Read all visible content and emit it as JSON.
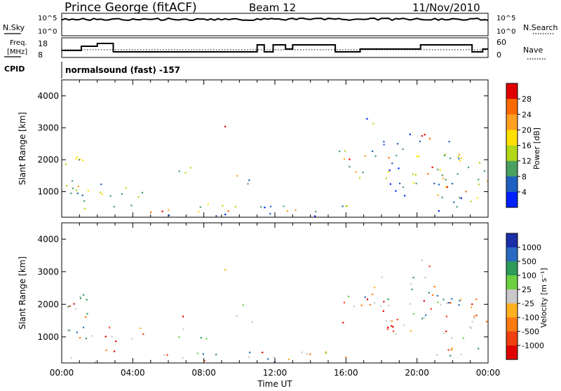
{
  "header": {
    "title": "Prince George (fitACF)",
    "beam": "Beam 12",
    "date": "11/Nov/2010"
  },
  "aux": {
    "nsky_label": "N.Sky",
    "nsky_ticks": [
      "10^5",
      "10^0"
    ],
    "nsearch_label": "N.Search",
    "nsearch_ticks": [
      "10^5",
      "10^0"
    ],
    "freq_label_1": "Freq.",
    "freq_label_2": "[MHz]",
    "freq_ticks": [
      "18",
      "8"
    ],
    "nave_label": "Nave",
    "nave_ticks": [
      "60",
      "0"
    ],
    "cpid_label": "CPID",
    "cpid_text": "normalsound (fast) -157"
  },
  "chart_data": [
    {
      "type": "heatmap",
      "name": "power",
      "ylabel": "Slant Range [km]",
      "xlabel": "Time UT",
      "x_ticks": [
        "00:00",
        "04:00",
        "08:00",
        "12:00",
        "16:00",
        "20:00",
        "00:00"
      ],
      "y_ticks": [
        1000,
        2000,
        3000,
        4000
      ],
      "ylim": [
        200,
        4500
      ],
      "xlim_hours": [
        0,
        24
      ],
      "colorbar_label": "Power [dB]",
      "colorbar_ticks": [
        "28",
        "24",
        "20",
        "16",
        "12",
        "8",
        "4"
      ],
      "colorbar_colors": [
        "#e00000",
        "#ff6a00",
        "#ffa020",
        "#ffe000",
        "#b0d818",
        "#4aa060",
        "#2060c0",
        "#0020ff"
      ]
    },
    {
      "type": "heatmap",
      "name": "velocity",
      "ylabel": "Slant Range [km]",
      "xlabel": "Time UT",
      "x_ticks": [
        "00:00",
        "04:00",
        "08:00",
        "12:00",
        "16:00",
        "20:00",
        "00:00"
      ],
      "y_ticks": [
        1000,
        2000,
        3000,
        4000
      ],
      "ylim": [
        200,
        4500
      ],
      "xlim_hours": [
        0,
        24
      ],
      "colorbar_label": "Velocity [m s⁻¹]",
      "colorbar_ticks": [
        "1000",
        "500",
        "100",
        "25",
        "-25",
        "-100",
        "-500",
        "-1000"
      ],
      "colorbar_colors": [
        "#1a2ea8",
        "#2a6ac0",
        "#2d9a5a",
        "#6cd040",
        "#c8c8c8",
        "#ffb020",
        "#ff7a10",
        "#f04010",
        "#e00000"
      ]
    }
  ]
}
